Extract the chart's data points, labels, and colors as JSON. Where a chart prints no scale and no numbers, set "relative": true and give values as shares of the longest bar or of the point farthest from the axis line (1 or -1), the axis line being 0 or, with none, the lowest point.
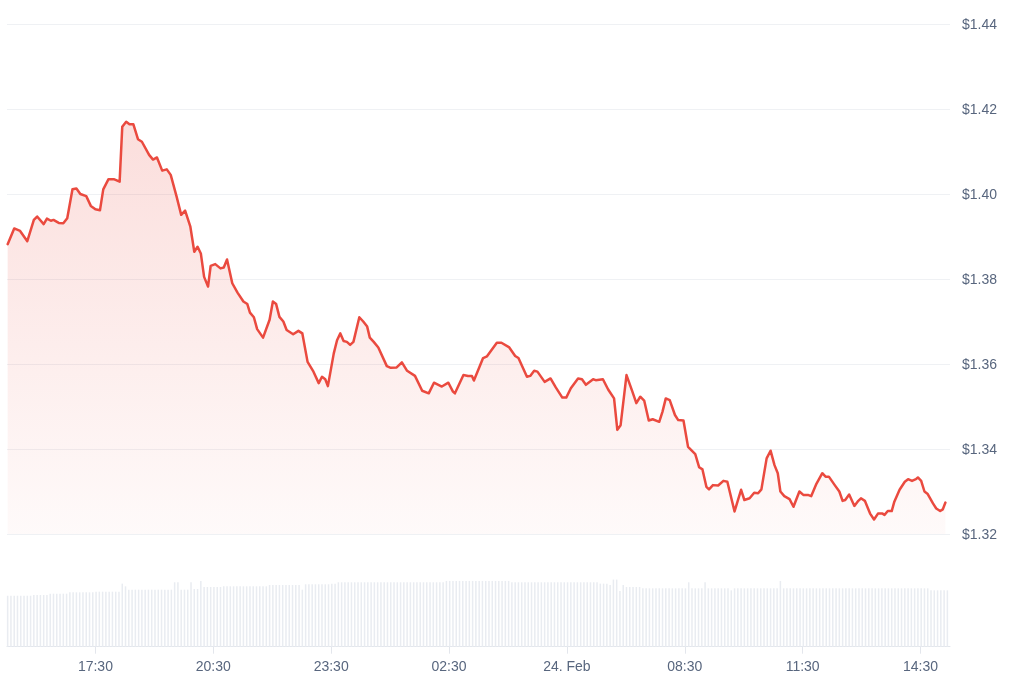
{
  "chart_data": [
    {
      "type": "area",
      "color": "#ea4a3f",
      "xlim": [
        "--02-23T15:15",
        "--02-24T15:15"
      ],
      "ylim": [
        1.32,
        1.44
      ],
      "yticks": [
        {
          "value": 1.32,
          "label": "$1.32"
        },
        {
          "value": 1.34,
          "label": "$1.34"
        },
        {
          "value": 1.36,
          "label": "$1.36"
        },
        {
          "value": 1.38,
          "label": "$1.38"
        },
        {
          "value": 1.4,
          "label": "$1.40"
        },
        {
          "value": 1.42,
          "label": "$1.42"
        },
        {
          "value": 1.44,
          "label": "$1.44"
        }
      ],
      "grid": "y",
      "tick_labels": "y",
      "x": [
        "--02-23T15:16",
        "--02-23T15:26",
        "--02-23T15:35",
        "--02-23T15:46",
        "--02-23T15:56",
        "--02-23T16:01",
        "--02-23T16:11",
        "--02-23T16:16",
        "--02-23T16:22",
        "--02-23T16:26",
        "--02-23T16:34",
        "--02-23T16:41",
        "--02-23T16:47",
        "--02-23T16:55",
        "--02-23T17:01",
        "--02-23T17:07",
        "--02-23T17:16",
        "--02-23T17:23",
        "--02-23T17:30",
        "--02-23T17:37",
        "--02-23T17:42",
        "--02-23T17:50",
        "--02-23T17:58",
        "--02-23T18:07",
        "--02-23T18:11",
        "--02-23T18:17",
        "--02-23T18:22",
        "--02-23T18:28",
        "--02-23T18:35",
        "--02-23T18:41",
        "--02-23T18:52",
        "--02-23T18:58",
        "--02-23T19:04",
        "--02-23T19:12",
        "--02-23T19:19",
        "--02-23T19:25",
        "--02-23T19:34",
        "--02-23T19:41",
        "--02-23T19:47",
        "--02-23T19:55",
        "--02-23T20:01",
        "--02-23T20:06",
        "--02-23T20:11",
        "--02-23T20:16",
        "--02-23T20:22",
        "--02-23T20:26",
        "--02-23T20:33",
        "--02-23T20:41",
        "--02-23T20:46",
        "--02-23T20:51",
        "--02-23T20:59",
        "--02-23T21:07",
        "--02-23T21:16",
        "--02-23T21:22",
        "--02-23T21:26",
        "--02-23T21:32",
        "--02-23T21:37",
        "--02-23T21:46",
        "--02-23T21:56",
        "--02-23T22:01",
        "--02-23T22:06",
        "--02-23T22:11",
        "--02-23T22:17",
        "--02-23T22:22",
        "--02-23T22:32",
        "--02-23T22:40",
        "--02-23T22:46",
        "--02-23T22:54",
        "--02-23T23:03",
        "--02-23T23:11",
        "--02-23T23:16",
        "--02-23T23:21",
        "--02-23T23:25",
        "--02-23T23:34",
        "--02-23T23:39",
        "--02-23T23:44",
        "--02-23T23:49",
        "--02-23T23:54",
        "--02-23T23:59",
        "--02-24T00:04",
        "--02-24T00:13",
        "--02-24T00:19",
        "--02-24T00:25",
        "--02-24T00:29",
        "--02-24T00:35",
        "--02-24T00:42",
        "--02-24T00:55",
        "--02-24T01:01",
        "--02-24T01:10",
        "--02-24T01:18",
        "--02-24T01:26",
        "--02-24T01:38",
        "--02-24T01:49",
        "--02-24T01:59",
        "--02-24T02:07",
        "--02-24T02:19",
        "--02-24T02:29",
        "--02-24T02:36",
        "--02-24T02:39",
        "--02-24T02:52",
        "--02-24T02:59",
        "--02-24T03:05",
        "--02-24T03:08",
        "--02-24T03:22",
        "--02-24T03:28",
        "--02-24T03:43",
        "--02-24T03:50",
        "--02-24T04:02",
        "--02-24T04:11",
        "--02-24T04:16",
        "--02-24T04:29",
        "--02-24T04:34",
        "--02-24T04:40",
        "--02-24T04:45",
        "--02-24T04:56",
        "--02-24T05:05",
        "--02-24T05:13",
        "--02-24T05:23",
        "--02-24T05:29",
        "--02-24T05:36",
        "--02-24T05:47",
        "--02-24T05:53",
        "--02-24T05:59",
        "--02-24T06:10",
        "--02-24T06:14",
        "--02-24T06:25",
        "--02-24T06:33",
        "--02-24T06:42",
        "--02-24T06:47",
        "--02-24T06:52",
        "--02-24T07:01",
        "--02-24T07:10",
        "--02-24T07:16",
        "--02-24T07:22",
        "--02-24T07:28",
        "--02-24T07:35",
        "--02-24T07:41",
        "--02-24T07:51",
        "--02-24T07:56",
        "--02-24T08:01",
        "--02-24T08:07",
        "--02-24T08:15",
        "--02-24T08:20",
        "--02-24T08:28",
        "--02-24T08:35",
        "--02-24T08:46",
        "--02-24T08:52",
        "--02-24T08:57",
        "--02-24T09:03",
        "--02-24T09:07",
        "--02-24T09:13",
        "--02-24T09:21",
        "--02-24T09:29",
        "--02-24T09:35",
        "--02-24T09:46",
        "--02-24T09:52",
        "--02-24T09:56",
        "--02-24T10:01",
        "--02-24T10:09",
        "--02-24T10:16",
        "--02-24T10:22",
        "--02-24T10:27",
        "--02-24T10:35",
        "--02-24T10:41",
        "--02-24T10:47",
        "--02-24T10:52",
        "--02-24T10:56",
        "--02-24T11:02",
        "--02-24T11:10",
        "--02-24T11:16",
        "--02-24T11:25",
        "--02-24T11:31",
        "--02-24T11:38",
        "--02-24T11:43",
        "--02-24T11:51",
        "--02-24T12:00",
        "--02-24T12:05",
        "--02-24T12:10",
        "--02-24T12:19",
        "--02-24T12:26",
        "--02-24T12:31",
        "--02-24T12:35",
        "--02-24T12:41",
        "--02-24T12:49",
        "--02-24T12:55",
        "--02-24T12:59",
        "--02-24T13:05",
        "--02-24T13:13",
        "--02-24T13:19",
        "--02-24T13:25",
        "--02-24T13:32",
        "--02-24T13:35",
        "--02-24T13:40",
        "--02-24T13:46",
        "--02-24T13:50",
        "--02-24T13:58",
        "--02-24T14:06",
        "--02-24T14:11",
        "--02-24T14:17",
        "--02-24T14:23",
        "--02-24T14:26",
        "--02-24T14:31",
        "--02-24T14:36",
        "--02-24T14:41",
        "--02-24T14:49",
        "--02-24T14:54",
        "--02-24T15:00",
        "--02-24T15:04",
        "--02-24T15:08"
      ],
      "values": [
        1.3882,
        1.3919,
        1.3913,
        1.3889,
        1.3939,
        1.3947,
        1.3929,
        1.3942,
        1.3937,
        1.3939,
        1.3932,
        1.3931,
        1.3943,
        1.4011,
        1.4013,
        1.4,
        1.3995,
        1.3972,
        1.3964,
        1.3962,
        1.4011,
        1.4035,
        1.4035,
        1.4029,
        1.4158,
        1.417,
        1.4164,
        1.4164,
        1.4129,
        1.4123,
        1.4092,
        1.4081,
        1.4086,
        1.4055,
        1.4058,
        1.4045,
        1.3994,
        1.3951,
        1.3961,
        1.3923,
        1.3864,
        1.3876,
        1.386,
        1.3805,
        1.3782,
        1.3831,
        1.3835,
        1.3825,
        1.3827,
        1.3846,
        1.379,
        1.3768,
        1.3747,
        1.3741,
        1.3721,
        1.371,
        1.3682,
        1.3662,
        1.3704,
        1.3747,
        1.3741,
        1.3711,
        1.37,
        1.368,
        1.367,
        1.3678,
        1.3672,
        1.3605,
        1.3582,
        1.3555,
        1.357,
        1.3564,
        1.3548,
        1.3625,
        1.3656,
        1.3672,
        1.3654,
        1.3652,
        1.3645,
        1.3652,
        1.371,
        1.37,
        1.3688,
        1.3662,
        1.3652,
        1.3639,
        1.3595,
        1.3591,
        1.3592,
        1.3604,
        1.3584,
        1.3572,
        1.3537,
        1.3531,
        1.3556,
        1.3547,
        1.3556,
        1.3535,
        1.3531,
        1.3574,
        1.3572,
        1.3572,
        1.3561,
        1.3614,
        1.3618,
        1.365,
        1.365,
        1.3639,
        1.3619,
        1.3614,
        1.357,
        1.3572,
        1.3584,
        1.3582,
        1.3558,
        1.3566,
        1.3545,
        1.3521,
        1.3521,
        1.3543,
        1.3566,
        1.3564,
        1.3551,
        1.3564,
        1.3562,
        1.3564,
        1.354,
        1.3519,
        1.3445,
        1.3456,
        1.3574,
        1.3535,
        1.3508,
        1.3523,
        1.3514,
        1.3467,
        1.347,
        1.3464,
        1.3488,
        1.3519,
        1.3515,
        1.348,
        1.3468,
        1.3467,
        1.3405,
        1.3388,
        1.3357,
        1.3352,
        1.3311,
        1.3305,
        1.3315,
        1.3314,
        1.3325,
        1.3323,
        1.3253,
        1.3284,
        1.3304,
        1.328,
        1.3284,
        1.3297,
        1.3296,
        1.3305,
        1.3378,
        1.3396,
        1.3362,
        1.3343,
        1.33,
        1.3289,
        1.3282,
        1.3264,
        1.33,
        1.3292,
        1.3292,
        1.3289,
        1.3318,
        1.3343,
        1.3335,
        1.3335,
        1.3315,
        1.33,
        1.3278,
        1.328,
        1.3293,
        1.3266,
        1.3278,
        1.3284,
        1.3278,
        1.3248,
        1.3234,
        1.3248,
        1.3248,
        1.3245,
        1.3254,
        1.3254,
        1.3276,
        1.3304,
        1.3323,
        1.3329,
        1.3325,
        1.3329,
        1.3333,
        1.3325,
        1.33,
        1.3294,
        1.3272,
        1.326,
        1.3254,
        1.3258,
        1.3274
      ]
    },
    {
      "type": "bar",
      "relative": true,
      "color": "#e9ecf1",
      "xlim": [
        "--02-23T15:15",
        "--02-24T15:15"
      ],
      "xticks": [
        {
          "value": "--02-23T17:30",
          "label": "17:30"
        },
        {
          "value": "--02-23T20:30",
          "label": "20:30"
        },
        {
          "value": "--02-23T23:30",
          "label": "23:30"
        },
        {
          "value": "--02-24T02:30",
          "label": "02:30"
        },
        {
          "value": "--02-24T05:30",
          "label": "24. Feb"
        },
        {
          "value": "--02-24T08:30",
          "label": "08:30"
        },
        {
          "value": "--02-24T11:30",
          "label": "11:30"
        },
        {
          "value": "--02-24T14:30",
          "label": "14:30"
        }
      ],
      "x": [
        "--02-23T15:16",
        "--02-23T15:21",
        "--02-23T15:26",
        "--02-23T15:31",
        "--02-23T15:36",
        "--02-23T15:41",
        "--02-23T15:46",
        "--02-23T15:51",
        "--02-23T15:56",
        "--02-23T16:01",
        "--02-23T16:06",
        "--02-23T16:11",
        "--02-23T16:16",
        "--02-23T16:21",
        "--02-23T16:26",
        "--02-23T16:31",
        "--02-23T16:36",
        "--02-23T16:41",
        "--02-23T16:46",
        "--02-23T16:51",
        "--02-23T16:56",
        "--02-23T17:01",
        "--02-23T17:06",
        "--02-23T17:11",
        "--02-23T17:16",
        "--02-23T17:21",
        "--02-23T17:26",
        "--02-23T17:31",
        "--02-23T17:36",
        "--02-23T17:41",
        "--02-23T17:46",
        "--02-23T17:51",
        "--02-23T17:56",
        "--02-23T18:01",
        "--02-23T18:06",
        "--02-23T18:11",
        "--02-23T18:16",
        "--02-23T18:21",
        "--02-23T18:26",
        "--02-23T18:31",
        "--02-23T18:36",
        "--02-23T18:41",
        "--02-23T18:46",
        "--02-23T18:51",
        "--02-23T18:56",
        "--02-23T19:01",
        "--02-23T19:06",
        "--02-23T19:11",
        "--02-23T19:16",
        "--02-23T19:21",
        "--02-23T19:26",
        "--02-23T19:31",
        "--02-23T19:36",
        "--02-23T19:41",
        "--02-23T19:46",
        "--02-23T19:51",
        "--02-23T19:56",
        "--02-23T20:01",
        "--02-23T20:06",
        "--02-23T20:11",
        "--02-23T20:16",
        "--02-23T20:21",
        "--02-23T20:26",
        "--02-23T20:31",
        "--02-23T20:36",
        "--02-23T20:41",
        "--02-23T20:46",
        "--02-23T20:51",
        "--02-23T20:56",
        "--02-23T21:01",
        "--02-23T21:06",
        "--02-23T21:11",
        "--02-23T21:16",
        "--02-23T21:21",
        "--02-23T21:26",
        "--02-23T21:31",
        "--02-23T21:36",
        "--02-23T21:41",
        "--02-23T21:46",
        "--02-23T21:51",
        "--02-23T21:56",
        "--02-23T22:01",
        "--02-23T22:06",
        "--02-23T22:11",
        "--02-23T22:16",
        "--02-23T22:21",
        "--02-23T22:26",
        "--02-23T22:31",
        "--02-23T22:36",
        "--02-23T22:41",
        "--02-23T22:46",
        "--02-23T22:51",
        "--02-23T22:56",
        "--02-23T23:01",
        "--02-23T23:06",
        "--02-23T23:11",
        "--02-23T23:16",
        "--02-23T23:21",
        "--02-23T23:26",
        "--02-23T23:31",
        "--02-23T23:36",
        "--02-23T23:41",
        "--02-23T23:46",
        "--02-23T23:51",
        "--02-23T23:56",
        "--02-24T00:01",
        "--02-24T00:06",
        "--02-24T00:11",
        "--02-24T00:16",
        "--02-24T00:21",
        "--02-24T00:26",
        "--02-24T00:31",
        "--02-24T00:36",
        "--02-24T00:41",
        "--02-24T00:46",
        "--02-24T00:51",
        "--02-24T00:56",
        "--02-24T01:01",
        "--02-24T01:06",
        "--02-24T01:11",
        "--02-24T01:16",
        "--02-24T01:21",
        "--02-24T01:26",
        "--02-24T01:31",
        "--02-24T01:36",
        "--02-24T01:41",
        "--02-24T01:46",
        "--02-24T01:51",
        "--02-24T01:56",
        "--02-24T02:01",
        "--02-24T02:06",
        "--02-24T02:11",
        "--02-24T02:16",
        "--02-24T02:21",
        "--02-24T02:26",
        "--02-24T02:31",
        "--02-24T02:36",
        "--02-24T02:41",
        "--02-24T02:46",
        "--02-24T02:51",
        "--02-24T02:56",
        "--02-24T03:01",
        "--02-24T03:06",
        "--02-24T03:11",
        "--02-24T03:16",
        "--02-24T03:21",
        "--02-24T03:26",
        "--02-24T03:31",
        "--02-24T03:36",
        "--02-24T03:41",
        "--02-24T03:46",
        "--02-24T03:51",
        "--02-24T03:56",
        "--02-24T04:01",
        "--02-24T04:06",
        "--02-24T04:11",
        "--02-24T04:16",
        "--02-24T04:21",
        "--02-24T04:26",
        "--02-24T04:31",
        "--02-24T04:36",
        "--02-24T04:41",
        "--02-24T04:46",
        "--02-24T04:51",
        "--02-24T04:56",
        "--02-24T05:01",
        "--02-24T05:06",
        "--02-24T05:11",
        "--02-24T05:16",
        "--02-24T05:21",
        "--02-24T05:26",
        "--02-24T05:31",
        "--02-24T05:36",
        "--02-24T05:41",
        "--02-24T05:46",
        "--02-24T05:51",
        "--02-24T05:56",
        "--02-24T06:01",
        "--02-24T06:06",
        "--02-24T06:11",
        "--02-24T06:16",
        "--02-24T06:21",
        "--02-24T06:26",
        "--02-24T06:31",
        "--02-24T06:36",
        "--02-24T06:41",
        "--02-24T06:46",
        "--02-24T06:51",
        "--02-24T06:56",
        "--02-24T07:01",
        "--02-24T07:06",
        "--02-24T07:11",
        "--02-24T07:16",
        "--02-24T07:21",
        "--02-24T07:26",
        "--02-24T07:31",
        "--02-24T07:36",
        "--02-24T07:41",
        "--02-24T07:46",
        "--02-24T07:51",
        "--02-24T07:56",
        "--02-24T08:01",
        "--02-24T08:06",
        "--02-24T08:11",
        "--02-24T08:16",
        "--02-24T08:21",
        "--02-24T08:26",
        "--02-24T08:31",
        "--02-24T08:36",
        "--02-24T08:41",
        "--02-24T08:46",
        "--02-24T08:51",
        "--02-24T08:56",
        "--02-24T09:01",
        "--02-24T09:06",
        "--02-24T09:11",
        "--02-24T09:16",
        "--02-24T09:21",
        "--02-24T09:26",
        "--02-24T09:31",
        "--02-24T09:36",
        "--02-24T09:41",
        "--02-24T09:46",
        "--02-24T09:51",
        "--02-24T09:56",
        "--02-24T10:01",
        "--02-24T10:06",
        "--02-24T10:11",
        "--02-24T10:16",
        "--02-24T10:21",
        "--02-24T10:26",
        "--02-24T10:31",
        "--02-24T10:36",
        "--02-24T10:41",
        "--02-24T10:46",
        "--02-24T10:51",
        "--02-24T10:56",
        "--02-24T11:01",
        "--02-24T11:06",
        "--02-24T11:11",
        "--02-24T11:16",
        "--02-24T11:21",
        "--02-24T11:26",
        "--02-24T11:31",
        "--02-24T11:36",
        "--02-24T11:41",
        "--02-24T11:46",
        "--02-24T11:51",
        "--02-24T11:56",
        "--02-24T12:01",
        "--02-24T12:06",
        "--02-24T12:11",
        "--02-24T12:16",
        "--02-24T12:21",
        "--02-24T12:26",
        "--02-24T12:31",
        "--02-24T12:36",
        "--02-24T12:41",
        "--02-24T12:46",
        "--02-24T12:51",
        "--02-24T12:56",
        "--02-24T13:01",
        "--02-24T13:06",
        "--02-24T13:11",
        "--02-24T13:16",
        "--02-24T13:21",
        "--02-24T13:26",
        "--02-24T13:31",
        "--02-24T13:36",
        "--02-24T13:41",
        "--02-24T13:46",
        "--02-24T13:51",
        "--02-24T13:56",
        "--02-24T14:01",
        "--02-24T14:06",
        "--02-24T14:11",
        "--02-24T14:16",
        "--02-24T14:21",
        "--02-24T14:26",
        "--02-24T14:31",
        "--02-24T14:36",
        "--02-24T14:41",
        "--02-24T14:46",
        "--02-24T14:51",
        "--02-24T14:56",
        "--02-24T15:01",
        "--02-24T15:06",
        "--02-24T15:11"
      ],
      "values": [
        0.76,
        0.76,
        0.76,
        0.76,
        0.76,
        0.76,
        0.76,
        0.76,
        0.77,
        0.77,
        0.77,
        0.77,
        0.77,
        0.79,
        0.79,
        0.79,
        0.79,
        0.79,
        0.79,
        0.81,
        0.81,
        0.81,
        0.81,
        0.81,
        0.81,
        0.81,
        0.81,
        0.82,
        0.82,
        0.82,
        0.82,
        0.82,
        0.82,
        0.82,
        0.82,
        0.94,
        0.9,
        0.85,
        0.85,
        0.85,
        0.85,
        0.85,
        0.85,
        0.85,
        0.85,
        0.85,
        0.85,
        0.85,
        0.85,
        0.85,
        0.85,
        0.96,
        0.96,
        0.85,
        0.85,
        0.85,
        0.96,
        0.86,
        0.86,
        0.98,
        0.89,
        0.89,
        0.89,
        0.89,
        0.89,
        0.89,
        0.9,
        0.9,
        0.9,
        0.9,
        0.9,
        0.9,
        0.9,
        0.9,
        0.9,
        0.9,
        0.9,
        0.9,
        0.9,
        0.9,
        0.92,
        0.92,
        0.92,
        0.92,
        0.92,
        0.92,
        0.92,
        0.92,
        0.92,
        0.92,
        0.85,
        0.93,
        0.93,
        0.93,
        0.93,
        0.93,
        0.93,
        0.93,
        0.93,
        0.94,
        0.94,
        0.96,
        0.96,
        0.96,
        0.96,
        0.96,
        0.96,
        0.96,
        0.96,
        0.96,
        0.96,
        0.96,
        0.96,
        0.96,
        0.96,
        0.96,
        0.96,
        0.96,
        0.96,
        0.96,
        0.96,
        0.96,
        0.96,
        0.96,
        0.96,
        0.96,
        0.96,
        0.96,
        0.96,
        0.96,
        0.96,
        0.96,
        0.96,
        0.96,
        0.98,
        0.98,
        0.98,
        0.98,
        0.98,
        0.98,
        0.98,
        0.98,
        0.98,
        0.98,
        0.98,
        0.98,
        0.98,
        0.98,
        0.98,
        0.98,
        0.98,
        0.98,
        0.98,
        0.98,
        0.96,
        0.96,
        0.96,
        0.96,
        0.96,
        0.96,
        0.96,
        0.96,
        0.96,
        0.96,
        0.96,
        0.96,
        0.96,
        0.96,
        0.96,
        0.96,
        0.96,
        0.96,
        0.96,
        0.96,
        0.96,
        0.96,
        0.96,
        0.96,
        0.96,
        0.96,
        0.96,
        0.94,
        0.94,
        0.94,
        0.92,
        1,
        1,
        0.83,
        0.92,
        0.89,
        0.89,
        0.89,
        0.89,
        0.89,
        0.87,
        0.87,
        0.87,
        0.87,
        0.87,
        0.87,
        0.87,
        0.87,
        0.87,
        0.87,
        0.87,
        0.87,
        0.87,
        0.87,
        0.96,
        0.87,
        0.87,
        0.87,
        0.87,
        0.96,
        0.87,
        0.87,
        0.87,
        0.87,
        0.87,
        0.87,
        0.87,
        0.84,
        0.87,
        0.87,
        0.87,
        0.87,
        0.87,
        0.87,
        0.87,
        0.87,
        0.87,
        0.87,
        0.87,
        0.87,
        0.87,
        0.87,
        0.98,
        0.87,
        0.87,
        0.87,
        0.87,
        0.87,
        0.87,
        0.87,
        0.87,
        0.87,
        0.87,
        0.87,
        0.87,
        0.87,
        0.87,
        0.87,
        0.87,
        0.87,
        0.87,
        0.87,
        0.87,
        0.87,
        0.87,
        0.87,
        0.87,
        0.87,
        0.87,
        0.87,
        0.87,
        0.87,
        0.87,
        0.87,
        0.87,
        0.87,
        0.87,
        0.87,
        0.87,
        0.87,
        0.87,
        0.87,
        0.87,
        0.87,
        0.87,
        0.87,
        0.87,
        0.87,
        0.84,
        0.84,
        0.84,
        0.84,
        0.84,
        0.84
      ]
    }
  ]
}
